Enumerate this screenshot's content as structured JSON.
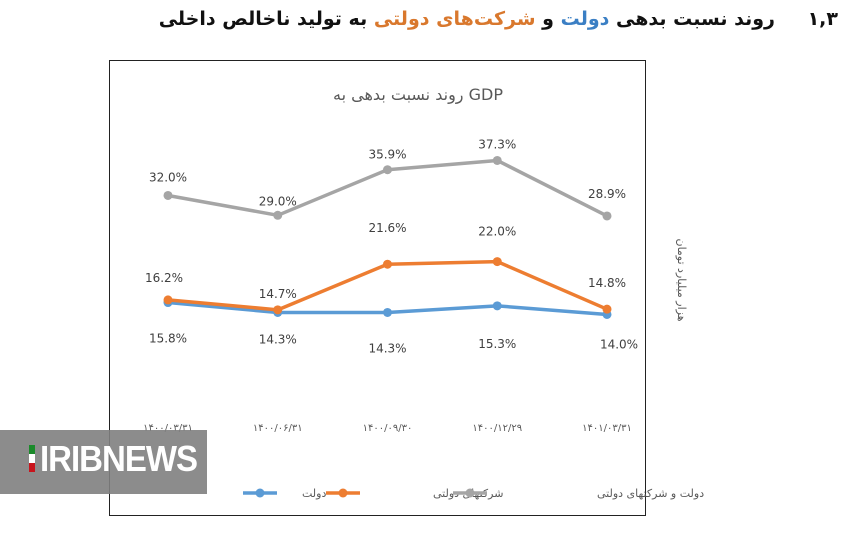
{
  "heading": {
    "number": "۱,۳",
    "part1": "روند نسبت بدهی",
    "part2": "دولت",
    "part3": "و",
    "part4": "شرکت‌های دولتی",
    "part5": "به تولید ناخالص داخلی"
  },
  "logo": "IRIBNEWS",
  "colors": {
    "government": "#5b9bd5",
    "companies": "#ed7d31",
    "total": "#a5a5a5"
  },
  "chart_data": {
    "type": "line",
    "title": "روند نسبت بدهی به GDP",
    "ylabel": "هزار میلیارد تومان",
    "categories": [
      "۱۴۰۰/۰۳/۳۱",
      "۱۴۰۰/۰۶/۳۱",
      "۱۴۰۰/۰۹/۳۰",
      "۱۴۰۰/۱۲/۲۹",
      "۱۴۰۱/۰۳/۳۱"
    ],
    "ylim": [
      0,
      40
    ],
    "grid": false,
    "legend": "bottom",
    "series": [
      {
        "name": "دولت",
        "color": "#5b9bd5",
        "values": [
          15.8,
          14.3,
          14.3,
          15.3,
          14.0
        ],
        "labels": [
          "15.8%",
          "14.3%",
          "14.3%",
          "15.3%",
          "14.0%"
        ]
      },
      {
        "name": "شرکتهای دولتی",
        "color": "#ed7d31",
        "values": [
          16.2,
          14.7,
          21.6,
          22.0,
          14.8
        ],
        "labels": [
          "16.2%",
          "14.7%",
          "21.6%",
          "22.0%",
          "14.8%"
        ]
      },
      {
        "name": "دولت و شرکتهای دولتی",
        "color": "#a5a5a5",
        "values": [
          32.0,
          29.0,
          35.9,
          37.3,
          28.9
        ],
        "labels": [
          "32.0%",
          "29.0%",
          "35.9%",
          "37.3%",
          "28.9%"
        ]
      }
    ]
  }
}
